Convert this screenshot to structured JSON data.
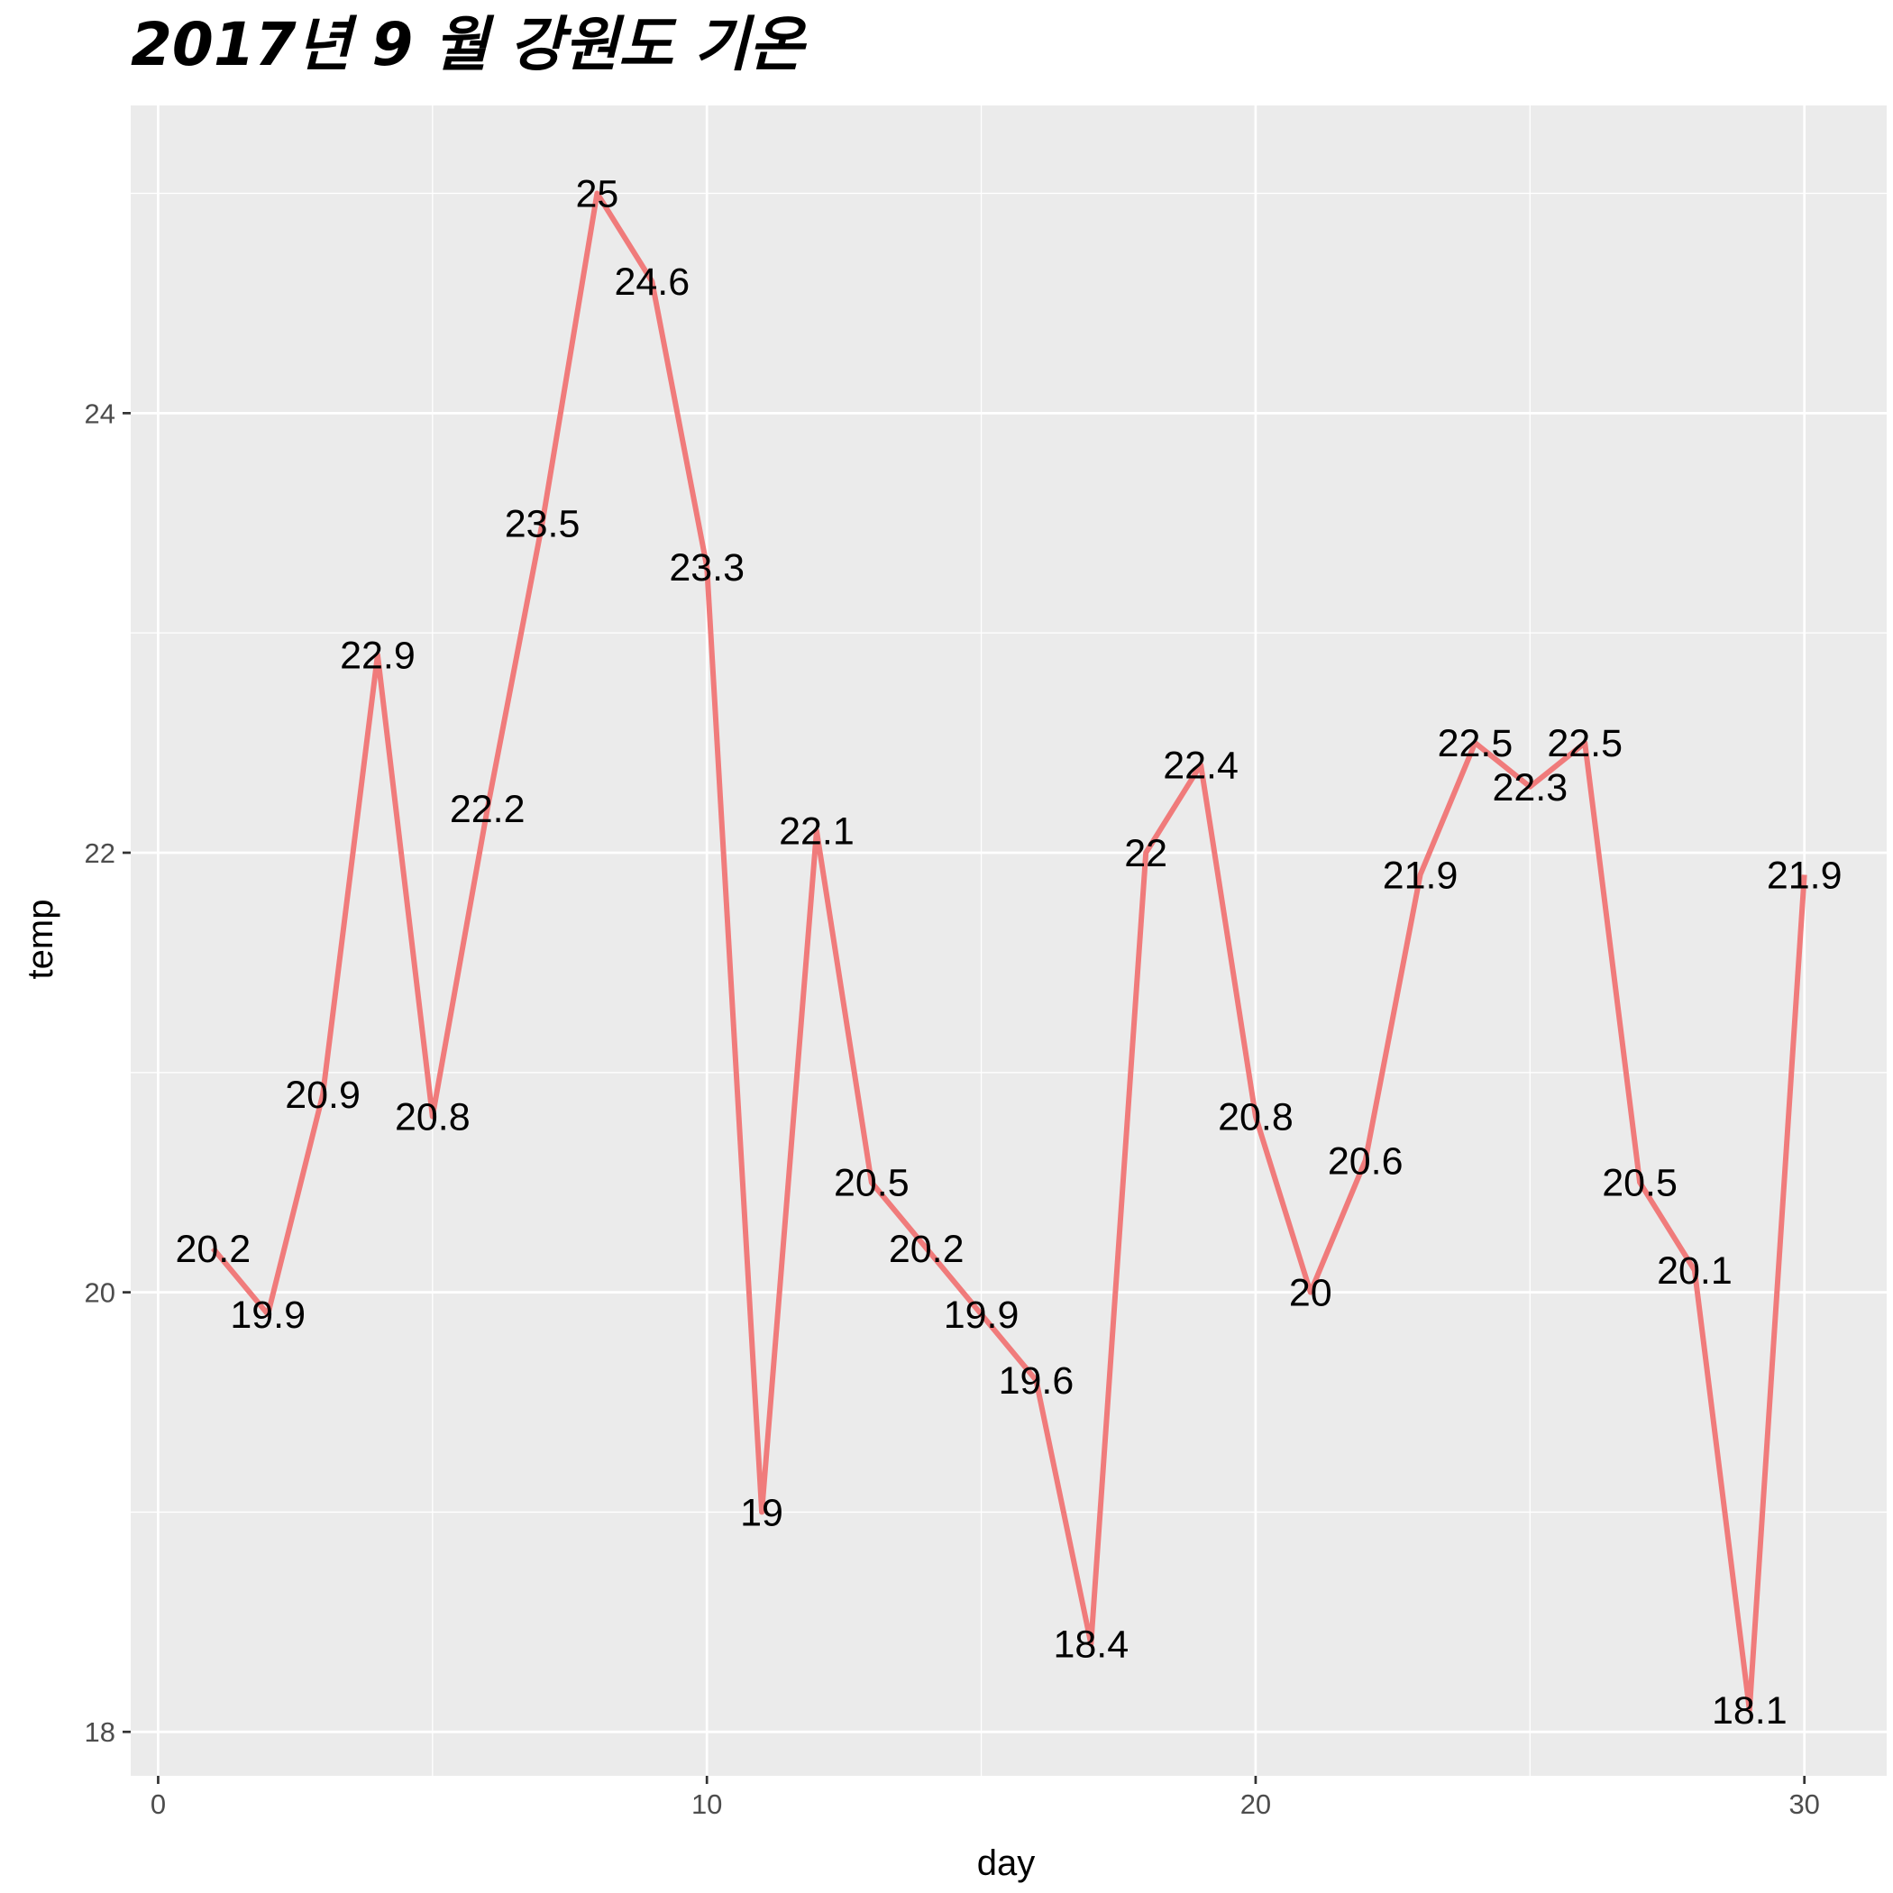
{
  "chart_data": {
    "type": "line",
    "title": "2017년 9 월 강원도 기온",
    "xlabel": "day",
    "ylabel": "temp",
    "xlim": [
      -0.5,
      31.5
    ],
    "ylim": [
      17.8,
      25.4
    ],
    "xticks": [
      0,
      10,
      20,
      30
    ],
    "yticks": [
      18,
      20,
      22,
      24
    ],
    "xminor": [
      5,
      15,
      25
    ],
    "yminor": [
      19,
      21,
      23,
      25
    ],
    "grid": true,
    "legend": "none",
    "colors": {
      "panel": "#ebebeb",
      "grid": "#ffffff",
      "line": "#f07b7b",
      "tick": "#333333"
    },
    "series": [
      {
        "x": [
          1,
          2,
          3,
          4,
          5,
          6,
          7,
          8,
          9,
          10,
          11,
          12,
          13,
          14,
          15,
          16,
          17,
          18,
          19,
          20,
          21,
          22,
          23,
          24,
          25,
          26,
          27,
          28,
          29,
          30
        ],
        "values": [
          20.2,
          19.9,
          20.9,
          22.9,
          20.8,
          22.2,
          23.5,
          25,
          24.6,
          23.3,
          19,
          22.1,
          20.5,
          20.2,
          19.9,
          19.6,
          18.4,
          22,
          22.4,
          20.8,
          20,
          20.6,
          21.9,
          22.5,
          22.3,
          22.5,
          20.5,
          20.1,
          18.1,
          21.9
        ],
        "labels": [
          "20.2",
          "19.9",
          "20.9",
          "22.9",
          "20.8",
          "22.2",
          "23.5",
          "25",
          "24.6",
          "23.3",
          "19",
          "22.1",
          "20.5",
          "20.2",
          "19.9",
          "19.6",
          "18.4",
          "22",
          "22.4",
          "20.8",
          "20",
          "20.6",
          "21.9",
          "22.5",
          "22.3",
          "22.5",
          "20.5",
          "20.1",
          "18.1",
          "21.9"
        ]
      }
    ]
  }
}
